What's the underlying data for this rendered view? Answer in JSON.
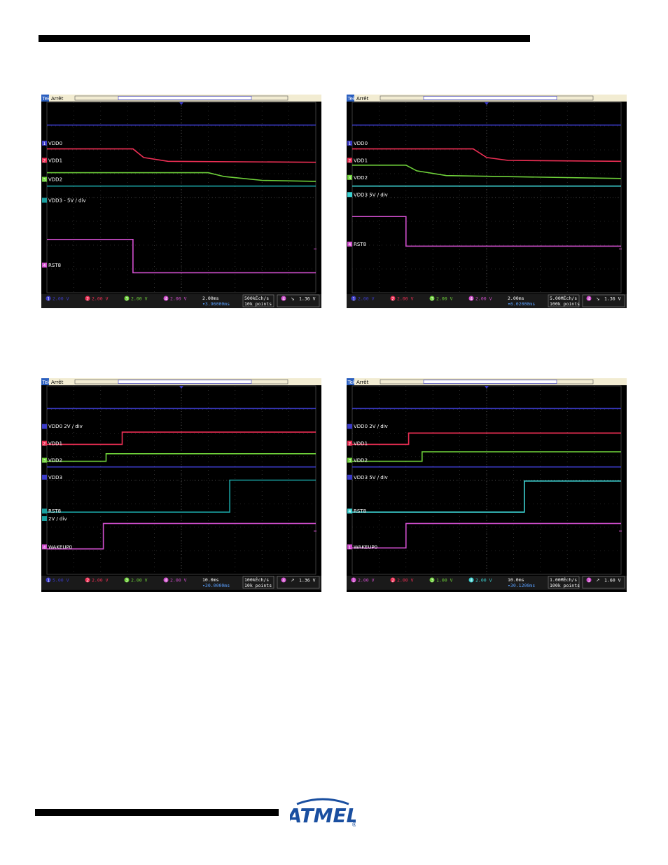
{
  "colors": {
    "ch1": "#3b3bc8",
    "ch2": "#ef2f55",
    "ch3": "#6fd23a",
    "ch4": "#d24fcf",
    "teal": "#1aa0a0",
    "cyan": "#3cd2d2",
    "grid": "#4a4a4a",
    "text": "#ffffff",
    "header": "#f2ecd2",
    "statusbg": "#1a1a1a",
    "logo": "#1a4fa0"
  },
  "logo": {
    "text": "ATMEL",
    "mark": "®"
  },
  "scopes": [
    {
      "id": "a",
      "header": {
        "brand": "Tek",
        "state": "Arrêt"
      },
      "labels": [
        {
          "text": "VDD0",
          "y": 0.22,
          "marker": "1",
          "marker_color": "ch1"
        },
        {
          "text": "VDD1",
          "y": 0.31,
          "marker": "2",
          "marker_color": "ch2"
        },
        {
          "text": "VDD2",
          "y": 0.41,
          "marker": "3",
          "marker_color": "ch3"
        },
        {
          "text": "VDD3 - 5V / div",
          "y": 0.52,
          "marker": "",
          "marker_color": "teal"
        },
        {
          "text": "RST8",
          "y": 0.86,
          "marker": "4",
          "marker_color": "ch4"
        }
      ],
      "traces": [
        {
          "color": "ch1",
          "pts": [
            [
              0,
              0.12
            ],
            [
              1,
              0.12
            ]
          ]
        },
        {
          "color": "ch2",
          "pts": [
            [
              0,
              0.245
            ],
            [
              0.32,
              0.245
            ],
            [
              0.36,
              0.29
            ],
            [
              0.45,
              0.31
            ],
            [
              1,
              0.315
            ]
          ]
        },
        {
          "color": "ch3",
          "pts": [
            [
              0,
              0.37
            ],
            [
              0.6,
              0.37
            ],
            [
              0.66,
              0.39
            ],
            [
              0.8,
              0.41
            ],
            [
              1,
              0.415
            ]
          ]
        },
        {
          "color": "teal",
          "pts": [
            [
              0,
              0.44
            ],
            [
              1,
              0.44
            ]
          ]
        },
        {
          "color": "ch4",
          "pts": [
            [
              0,
              0.72
            ],
            [
              0.32,
              0.72
            ],
            [
              0.32,
              0.895
            ],
            [
              1,
              0.895
            ]
          ]
        }
      ],
      "status": {
        "channels": [
          {
            "n": "1",
            "v": "2.00 V",
            "c": "ch1"
          },
          {
            "n": "2",
            "v": "2.00 V",
            "c": "ch2"
          },
          {
            "n": "3",
            "v": "2.00 V",
            "c": "ch3"
          },
          {
            "n": "4",
            "v": "2.00 V",
            "c": "ch4"
          }
        ],
        "time": "2.00ms",
        "delay": "▾3.96000ms",
        "rate": "500kÉch/s",
        "points": "10k points",
        "trig_ch": "4",
        "trig_edge": "↘",
        "trig_level": "1.36 V"
      }
    },
    {
      "id": "b",
      "header": {
        "brand": "Tek",
        "state": "Arrêt"
      },
      "labels": [
        {
          "text": "VDD0",
          "y": 0.22,
          "marker": "1",
          "marker_color": "ch1"
        },
        {
          "text": "VDD1",
          "y": 0.31,
          "marker": "2",
          "marker_color": "ch2"
        },
        {
          "text": "VDD2",
          "y": 0.4,
          "marker": "3",
          "marker_color": "ch3"
        },
        {
          "text": "VDD3   5V / div",
          "y": 0.49,
          "marker": "",
          "marker_color": "cyan"
        },
        {
          "text": "RST8",
          "y": 0.75,
          "marker": "4",
          "marker_color": "ch4"
        }
      ],
      "traces": [
        {
          "color": "ch1",
          "pts": [
            [
              0,
              0.12
            ],
            [
              1,
              0.12
            ]
          ]
        },
        {
          "color": "ch2",
          "pts": [
            [
              0,
              0.245
            ],
            [
              0.45,
              0.245
            ],
            [
              0.5,
              0.29
            ],
            [
              0.58,
              0.305
            ],
            [
              1,
              0.31
            ]
          ]
        },
        {
          "color": "ch3",
          "pts": [
            [
              0,
              0.33
            ],
            [
              0.2,
              0.33
            ],
            [
              0.24,
              0.36
            ],
            [
              0.35,
              0.385
            ],
            [
              1,
              0.4
            ]
          ]
        },
        {
          "color": "cyan",
          "pts": [
            [
              0,
              0.44
            ],
            [
              1,
              0.44
            ]
          ]
        },
        {
          "color": "ch4",
          "pts": [
            [
              0,
              0.6
            ],
            [
              0.2,
              0.6
            ],
            [
              0.2,
              0.755
            ],
            [
              1,
              0.755
            ]
          ]
        }
      ],
      "status": {
        "channels": [
          {
            "n": "1",
            "v": "2.00 V",
            "c": "ch1"
          },
          {
            "n": "2",
            "v": "2.00 V",
            "c": "ch2"
          },
          {
            "n": "3",
            "v": "2.00 V",
            "c": "ch3"
          },
          {
            "n": "4",
            "v": "2.00 V",
            "c": "ch4"
          }
        ],
        "time": "2.00ms",
        "delay": "▾6.02000ms",
        "rate": "5.00MÉch/s",
        "points": "100k points",
        "trig_ch": "4",
        "trig_edge": "↘",
        "trig_level": "1.36 V"
      }
    },
    {
      "id": "c",
      "header": {
        "brand": "Tek",
        "state": "Arrêt"
      },
      "labels": [
        {
          "text": "VDD0 2V / div",
          "y": 0.22,
          "marker": "",
          "marker_color": "ch1"
        },
        {
          "text": "VDD1",
          "y": 0.31,
          "marker": "2",
          "marker_color": "ch2"
        },
        {
          "text": "VDD2",
          "y": 0.4,
          "marker": "3",
          "marker_color": "ch3"
        },
        {
          "text": "VDD3",
          "y": 0.49,
          "marker": "",
          "marker_color": "ch1"
        },
        {
          "text": "RST8",
          "y": 0.67,
          "marker": "",
          "marker_color": "teal"
        },
        {
          "text": "2V / div",
          "y": 0.71,
          "marker": "",
          "marker_color": "teal"
        },
        {
          "text": "WAKEUP0",
          "y": 0.86,
          "marker": "4",
          "marker_color": "ch4"
        }
      ],
      "traces": [
        {
          "color": "ch1",
          "pts": [
            [
              0,
              0.12
            ],
            [
              1,
              0.12
            ]
          ]
        },
        {
          "color": "ch2",
          "pts": [
            [
              0,
              0.31
            ],
            [
              0.28,
              0.31
            ],
            [
              0.28,
              0.245
            ],
            [
              1,
              0.245
            ]
          ]
        },
        {
          "color": "ch3",
          "pts": [
            [
              0,
              0.4
            ],
            [
              0.22,
              0.4
            ],
            [
              0.22,
              0.36
            ],
            [
              1,
              0.36
            ]
          ]
        },
        {
          "color": "ch1",
          "pts": [
            [
              0,
              0.43
            ],
            [
              1,
              0.43
            ]
          ]
        },
        {
          "color": "teal",
          "pts": [
            [
              0,
              0.67
            ],
            [
              0.68,
              0.67
            ],
            [
              0.68,
              0.5
            ],
            [
              1,
              0.5
            ]
          ]
        },
        {
          "color": "ch4",
          "pts": [
            [
              0,
              0.865
            ],
            [
              0.21,
              0.865
            ],
            [
              0.21,
              0.73
            ],
            [
              1,
              0.73
            ]
          ]
        }
      ],
      "status": {
        "channels": [
          {
            "n": "1",
            "v": "5.00 V",
            "c": "ch1"
          },
          {
            "n": "2",
            "v": "2.00 V",
            "c": "ch2"
          },
          {
            "n": "3",
            "v": "2.00 V",
            "c": "ch3"
          },
          {
            "n": "4",
            "v": "2.00 V",
            "c": "ch4"
          }
        ],
        "time": "10.0ms",
        "delay": "▾30.0000ms",
        "rate": "100kÉch/s",
        "points": "10k points",
        "trig_ch": "4",
        "trig_edge": "↗",
        "trig_level": "1.36 V"
      }
    },
    {
      "id": "d",
      "header": {
        "brand": "Tek",
        "state": "Arrêt"
      },
      "labels": [
        {
          "text": "VDD0  2V / div",
          "y": 0.22,
          "marker": "",
          "marker_color": "ch1"
        },
        {
          "text": "VDD1",
          "y": 0.31,
          "marker": "2",
          "marker_color": "ch2"
        },
        {
          "text": "VDD2",
          "y": 0.4,
          "marker": "3",
          "marker_color": "ch3"
        },
        {
          "text": "VDD3  5V / div",
          "y": 0.49,
          "marker": "",
          "marker_color": "ch1"
        },
        {
          "text": "RST8",
          "y": 0.67,
          "marker": "4",
          "marker_color": "cyan"
        },
        {
          "text": "WAKEUP0",
          "y": 0.86,
          "marker": "1",
          "marker_color": "ch4"
        }
      ],
      "traces": [
        {
          "color": "ch1",
          "pts": [
            [
              0,
              0.12
            ],
            [
              1,
              0.12
            ]
          ]
        },
        {
          "color": "ch2",
          "pts": [
            [
              0,
              0.31
            ],
            [
              0.21,
              0.31
            ],
            [
              0.21,
              0.25
            ],
            [
              1,
              0.25
            ]
          ]
        },
        {
          "color": "ch3",
          "pts": [
            [
              0,
              0.4
            ],
            [
              0.26,
              0.4
            ],
            [
              0.26,
              0.35
            ],
            [
              1,
              0.35
            ]
          ]
        },
        {
          "color": "ch1",
          "pts": [
            [
              0,
              0.43
            ],
            [
              1,
              0.43
            ]
          ]
        },
        {
          "color": "cyan",
          "pts": [
            [
              0,
              0.67
            ],
            [
              0.64,
              0.67
            ],
            [
              0.64,
              0.505
            ],
            [
              1,
              0.505
            ]
          ]
        },
        {
          "color": "ch4",
          "pts": [
            [
              0,
              0.86
            ],
            [
              0.2,
              0.86
            ],
            [
              0.2,
              0.73
            ],
            [
              1,
              0.73
            ]
          ]
        }
      ],
      "status": {
        "channels": [
          {
            "n": "1",
            "v": "2.00 V",
            "c": "ch4"
          },
          {
            "n": "2",
            "v": "2.00 V",
            "c": "ch2"
          },
          {
            "n": "3",
            "v": "1.00 V",
            "c": "ch3"
          },
          {
            "n": "4",
            "v": "2.00 V",
            "c": "cyan"
          }
        ],
        "time": "10.0ms",
        "delay": "▾30.1200ms",
        "rate": "1.00MÉch/s",
        "points": "100k points",
        "trig_ch": "1",
        "trig_edge": "↗",
        "trig_level": "1.60 V"
      }
    }
  ]
}
